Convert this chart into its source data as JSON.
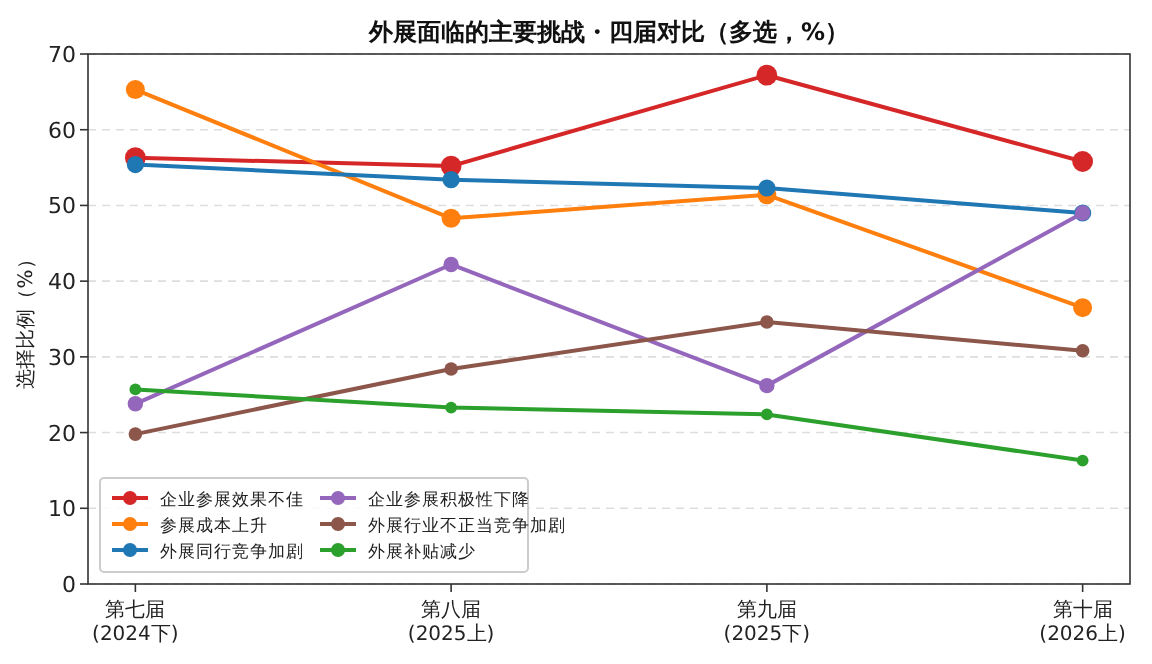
{
  "chart_data": {
    "type": "line",
    "title": "外展面临的主要挑战・四届对比（多选，%）",
    "ylabel": "选择比例（%）",
    "categories": [
      "第七届\n(2024下)",
      "第八届\n(2025上)",
      "第九届\n(2025下)",
      "第十届\n(2026上)"
    ],
    "ylim": [
      0,
      70
    ],
    "yticks": [
      0,
      10,
      20,
      30,
      40,
      50,
      60,
      70
    ],
    "grid": "y",
    "legend": "bottom left",
    "marker": "circle",
    "line_style": "solid",
    "series": [
      {
        "name": "企业参展效果不佳",
        "color": "#d62728",
        "values": [
          56.3,
          55.2,
          67.2,
          55.8
        ]
      },
      {
        "name": "参展成本上升",
        "color": "#ff7f0e",
        "values": [
          65.3,
          48.3,
          51.4,
          36.5
        ]
      },
      {
        "name": "外展同行竞争加剧",
        "color": "#1f77b4",
        "values": [
          55.4,
          53.4,
          52.3,
          49.0
        ]
      },
      {
        "name": "企业参展积极性下降",
        "color": "#9467bd",
        "values": [
          23.8,
          42.2,
          26.2,
          49.0
        ]
      },
      {
        "name": "外展行业不正当竞争加剧",
        "color": "#8c564b",
        "values": [
          19.8,
          28.4,
          34.6,
          30.8
        ]
      },
      {
        "name": "外展补贴减少",
        "color": "#2ca02c",
        "values": [
          25.7,
          23.3,
          22.4,
          16.3
        ]
      }
    ]
  }
}
